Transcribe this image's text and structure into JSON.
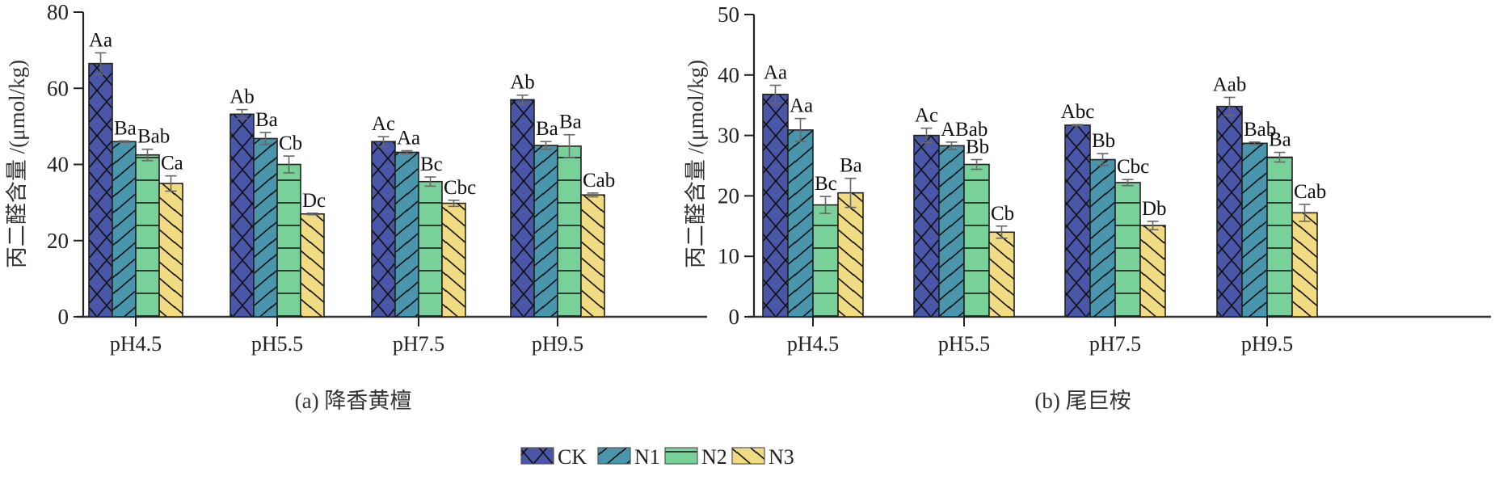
{
  "legend": {
    "items": [
      {
        "name": "CK",
        "color": "#4a56a8",
        "pattern": "crosshatch"
      },
      {
        "name": "N1",
        "color": "#4895ac",
        "pattern": "forward-diagonal"
      },
      {
        "name": "N2",
        "color": "#79d19a",
        "pattern": "horizontal"
      },
      {
        "name": "N3",
        "color": "#f0da82",
        "pattern": "back-diagonal"
      }
    ]
  },
  "chart_data": [
    {
      "type": "bar",
      "title": "(a) 降香黄檀",
      "xlabel": "",
      "ylabel": "丙二醛含量 /(μmol/kg)",
      "ylim": [
        0,
        80
      ],
      "yticks": [
        0,
        20,
        40,
        60,
        80
      ],
      "categories": [
        "pH4.5",
        "pH5.5",
        "pH7.5",
        "pH9.5"
      ],
      "series": [
        {
          "name": "CK",
          "values": [
            66.5,
            53.2,
            46.0,
            57.0
          ],
          "errors": [
            2.8,
            1.2,
            1.3,
            1.2
          ],
          "labels": [
            "Aa",
            "Ab",
            "Ac",
            "Ab"
          ]
        },
        {
          "name": "N1",
          "values": [
            46.0,
            46.8,
            43.2,
            45.0
          ],
          "errors": [
            0.2,
            1.6,
            0.4,
            1.0
          ],
          "labels": [
            "Ba",
            "Ba",
            "Aa",
            "Ba"
          ]
        },
        {
          "name": "N2",
          "values": [
            42.5,
            40.0,
            35.5,
            44.8
          ],
          "errors": [
            1.5,
            2.2,
            1.2,
            3.0
          ],
          "labels": [
            "Bab",
            "Cb",
            "Bc",
            "Ba"
          ]
        },
        {
          "name": "N3",
          "values": [
            35.0,
            27.0,
            29.8,
            32.0
          ],
          "errors": [
            2.0,
            0.2,
            0.8,
            0.5
          ],
          "labels": [
            "Ca",
            "Dc",
            "Cbc",
            "Cab"
          ]
        }
      ],
      "grid": false,
      "legend_position": "bottom-center"
    },
    {
      "type": "bar",
      "title": "(b) 尾巨桉",
      "xlabel": "",
      "ylabel": "丙二醛含量 /(μmol/kg)",
      "ylim": [
        0,
        50
      ],
      "yticks": [
        0,
        10,
        20,
        30,
        40,
        50
      ],
      "categories": [
        "pH4.5",
        "pH5.5",
        "pH7.5",
        "pH9.5"
      ],
      "series": [
        {
          "name": "CK",
          "values": [
            36.8,
            30.0,
            31.7,
            34.8
          ],
          "errors": [
            1.5,
            1.2,
            0.1,
            1.5
          ],
          "labels": [
            "Aa",
            "Ac",
            "Abc",
            "Aab"
          ]
        },
        {
          "name": "N1",
          "values": [
            30.9,
            28.3,
            26.0,
            28.7
          ],
          "errors": [
            1.9,
            0.6,
            1.0,
            0.2
          ],
          "labels": [
            "Aa",
            "ABab",
            "Bb",
            "Bab"
          ]
        },
        {
          "name": "N2",
          "values": [
            18.5,
            25.2,
            22.2,
            26.4
          ],
          "errors": [
            1.4,
            0.8,
            0.5,
            0.8
          ],
          "labels": [
            "Bc",
            "Bb",
            "Cbc",
            "Ba"
          ]
        },
        {
          "name": "N3",
          "values": [
            20.5,
            14.0,
            15.1,
            17.2
          ],
          "errors": [
            2.4,
            1.0,
            0.7,
            1.4
          ],
          "labels": [
            "Ba",
            "Cb",
            "Db",
            "Cab"
          ]
        }
      ],
      "grid": false,
      "legend_position": "bottom-center"
    }
  ]
}
